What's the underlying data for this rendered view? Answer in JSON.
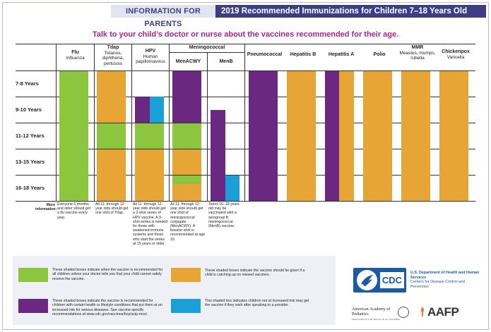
{
  "header": {
    "left_label": "INFORMATION FOR PARENTS",
    "title": "2019 Recommended Immunizations for Children 7–18 Years Old"
  },
  "tagline": "Talk to your child’s doctor or nurse about the vaccines recommended for their age.",
  "colors": {
    "green": "#8cc63f",
    "orange": "#e6a535",
    "purple": "#6a2880",
    "blue": "#1a9fd6",
    "header_navy": "#3d3d86",
    "tagline_magenta": "#a4287f"
  },
  "group_header": "Meningococcal",
  "columns": [
    {
      "id": "flu",
      "name": "Flu",
      "sub": "Influenza"
    },
    {
      "id": "tdap",
      "name": "Tdap",
      "sub": "Tetanus, diphtheria, pertussis"
    },
    {
      "id": "hpv",
      "name": "HPV",
      "sub": "Human papillomavirus"
    },
    {
      "id": "menacwy",
      "name": "MenACWY",
      "sub": ""
    },
    {
      "id": "menb",
      "name": "MenB",
      "sub": ""
    },
    {
      "id": "pneumococcal",
      "name": "Pneumococcal",
      "sub": ""
    },
    {
      "id": "hepb",
      "name": "Hepatitis B",
      "sub": ""
    },
    {
      "id": "hepa",
      "name": "Hepatitis A",
      "sub": ""
    },
    {
      "id": "polio",
      "name": "Polio",
      "sub": ""
    },
    {
      "id": "mmr",
      "name": "MMR",
      "sub": "Measles, mumps, rubella"
    },
    {
      "id": "chickenpox",
      "name": "Chickenpox",
      "sub": "Varicella"
    }
  ],
  "rows": [
    "7-8 Years",
    "9-10 Years",
    "11-12 Years",
    "13-15 Years",
    "16-18 Years"
  ],
  "more_info_label": "More information:",
  "notes": [
    "Everyone 6 months and older should get a flu vaccine every year.",
    "All 11- through 12-year olds should get one shot of Tdap.",
    "All 11- through 12-year olds should get a 2-shot series of HPV vaccine. A 3-shot series is needed for those with weakened immune systems and those who start the series at 15 years or older.",
    "All 11- through 12-year olds should get one shot of meningococcal conjugate (MenACWY). A booster shot is recommended at age 16.",
    "Teens 16–18 years old may be vaccinated with a serogroup B meningococcal (MenB) vaccine."
  ],
  "legend": [
    {
      "color": "green",
      "text": "These shaded boxes indicate when the vaccine is recommended for all children unless your doctor tells you that your child cannot safely receive the vaccine."
    },
    {
      "color": "orange",
      "text": "These shaded boxes indicate the vaccine should be given if a child is catching up on missed vaccines."
    },
    {
      "color": "purple",
      "text": "These shaded boxes indicate the vaccine is recommended for children with certain health or lifestyle conditions that put them at an increased risk for serious diseases. See vaccine-specific recommendations at www.cdc.gov/vaccines/hcp/acip-recs/."
    },
    {
      "color": "blue",
      "text": "This shaded box indicates children not at increased risk may get the vaccine if they wish after speaking to a provider."
    }
  ],
  "logos": {
    "cdc": "CDC",
    "hhs_title": "U.S. Department of Health and Human Services",
    "hhs_sub": "Centers for Disease Control and Prevention",
    "aap": "American Academy of Pediatrics",
    "aap_tagline": "DEDICATED TO THE HEALTH OF ALL CHILDREN",
    "aafp": "AAFP"
  }
}
